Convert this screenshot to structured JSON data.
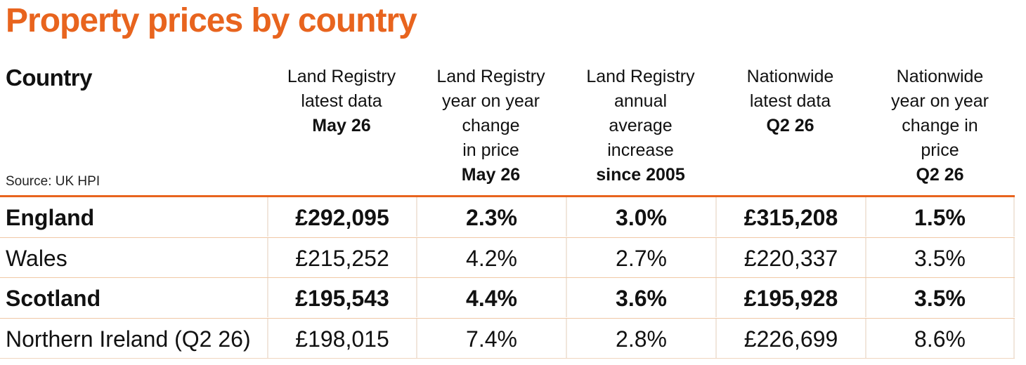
{
  "title": "Property prices by country",
  "header": {
    "country_label": "Country",
    "source": "Source: UK HPI",
    "columns": [
      {
        "lines": [
          "Land Registry",
          "latest data"
        ],
        "bold_line": "May 26"
      },
      {
        "lines": [
          "Land Registry",
          "year on year",
          "change",
          "in price"
        ],
        "bold_line": "May 26"
      },
      {
        "lines": [
          "Land Registry",
          "annual",
          "average",
          "increase"
        ],
        "bold_line": "since 2005"
      },
      {
        "lines": [
          "Nationwide",
          "latest data"
        ],
        "bold_line": "Q2  26"
      },
      {
        "lines": [
          "Nationwide",
          "year on year",
          "change in",
          "price"
        ],
        "bold_line": "Q2  26"
      }
    ]
  },
  "rows": [
    {
      "country": "England",
      "values": [
        "£292,095",
        "2.3%",
        "3.0%",
        "£315,208",
        "1.5%"
      ],
      "bold": true
    },
    {
      "country": "Wales",
      "values": [
        "£215,252",
        "4.2%",
        "2.7%",
        "£220,337",
        "3.5%"
      ],
      "bold": false
    },
    {
      "country": "Scotland",
      "values": [
        "£195,543",
        "4.4%",
        "3.6%",
        "£195,928",
        "3.5%"
      ],
      "bold": true
    },
    {
      "country": "Northern Ireland (Q2 26)",
      "values": [
        "£198,015",
        "7.4%",
        "2.8%",
        "£226,699",
        "8.6%"
      ],
      "bold": false
    }
  ],
  "colors": {
    "accent": "#e8641e",
    "divider": "#f0c8a6",
    "text": "#111111"
  }
}
